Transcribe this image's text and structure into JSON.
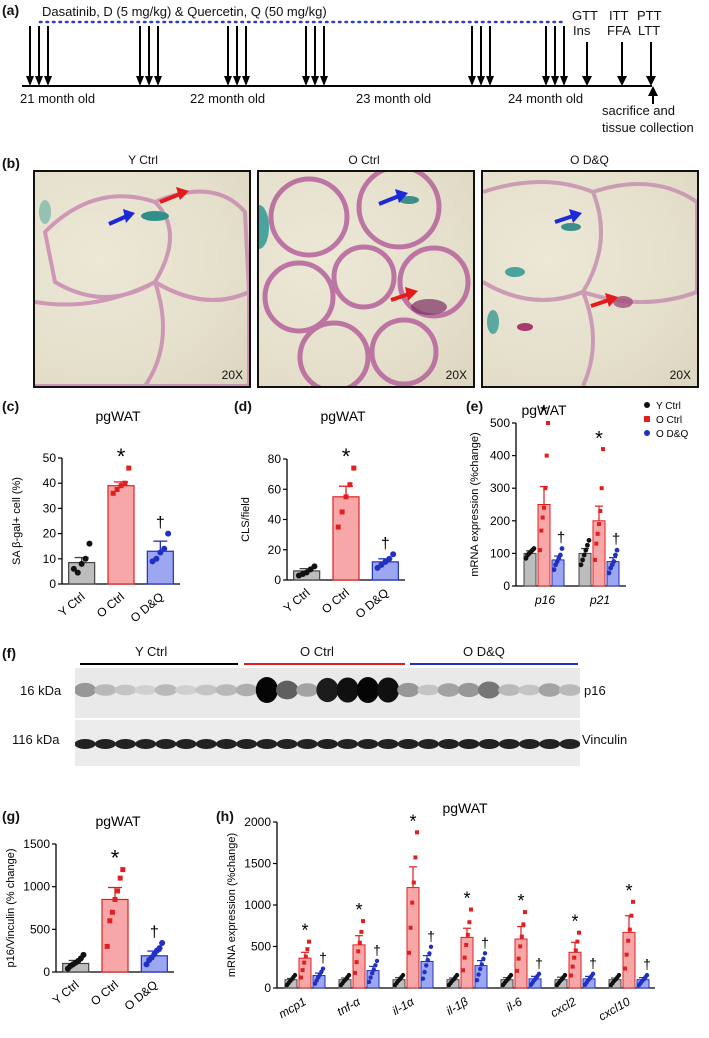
{
  "panel_labels": {
    "a": "(a)",
    "b": "(b)",
    "c": "(c)",
    "d": "(d)",
    "e": "(e)",
    "f": "(f)",
    "g": "(g)",
    "h": "(h)"
  },
  "timeline": {
    "treatment": "Dasatinib, D (5 mg/kg) & Quercetin, Q (50 mg/kg)",
    "ages": [
      "21 month old",
      "22 month old",
      "23 month old",
      "24 month old"
    ],
    "tests": {
      "gtt": "GTT",
      "ins": "Ins",
      "itt": "ITT",
      "ffa": "FFA",
      "ptt": "PTT",
      "ltt": "LTT"
    },
    "sacrifice": "sacrifice and tissue collection",
    "colors": {
      "dots": "#2b3fbf",
      "arrows": "#000000"
    }
  },
  "micrographs": [
    {
      "title": "Y Ctrl",
      "mag": "20X"
    },
    {
      "title": "O Ctrl",
      "mag": "20X"
    },
    {
      "title": "O D&Q",
      "mag": "20X"
    }
  ],
  "common": {
    "tissue": "pgWAT",
    "star": "*",
    "dagger": "†"
  },
  "colors": {
    "y": "#bdbdbd",
    "o": "#f7a7a7",
    "oe": "#e02020",
    "dq": "#9da6f0",
    "dqe": "#2030c0"
  },
  "chart_data": [
    {
      "id": "c",
      "type": "bar",
      "title": "pgWAT",
      "ylabel": "SA β-gal+ cell (%)",
      "ylim": [
        0,
        50
      ],
      "yticks": [
        0,
        10,
        20,
        30,
        40,
        50
      ],
      "categories": [
        "Y Ctrl",
        "O Ctrl",
        "O D&Q"
      ],
      "values": [
        8.5,
        39,
        13
      ],
      "errors": [
        2,
        1.5,
        4
      ],
      "points": [
        [
          6,
          4.5,
          8,
          10,
          16
        ],
        [
          36,
          37.5,
          39,
          40,
          46
        ],
        [
          9,
          10,
          12.5,
          14,
          20
        ]
      ],
      "annotations": [
        {
          "category": "O Ctrl",
          "text": "*"
        },
        {
          "category": "O D&Q",
          "text": "†"
        }
      ]
    },
    {
      "id": "d",
      "type": "bar",
      "title": "pgWAT",
      "ylabel": "CLS/field",
      "ylim": [
        0,
        80
      ],
      "yticks": [
        0,
        20,
        40,
        60,
        80
      ],
      "categories": [
        "Y Ctrl",
        "O Ctrl",
        "O D&Q"
      ],
      "values": [
        6,
        55,
        12
      ],
      "errors": [
        1.5,
        7,
        2
      ],
      "points": [
        [
          3,
          4,
          5,
          7,
          9
        ],
        [
          35,
          45,
          55,
          63,
          74
        ],
        [
          8,
          10,
          12,
          14,
          17
        ]
      ],
      "annotations": [
        {
          "category": "O Ctrl",
          "text": "*"
        },
        {
          "category": "O D&Q",
          "text": "†"
        }
      ]
    },
    {
      "id": "e",
      "type": "bar",
      "title": "pgWAT",
      "ylabel": "mRNA expression (%change)",
      "ylim": [
        0,
        500
      ],
      "yticks": [
        0,
        100,
        200,
        300,
        400,
        500
      ],
      "categories": [
        "p16",
        "p21"
      ],
      "series": [
        {
          "name": "Y Ctrl",
          "values": [
            100,
            100
          ],
          "errors": [
            8,
            15
          ]
        },
        {
          "name": "O Ctrl",
          "values": [
            250,
            200
          ],
          "errors": [
            55,
            45
          ]
        },
        {
          "name": "O D&Q",
          "values": [
            80,
            75
          ],
          "errors": [
            12,
            12
          ]
        }
      ],
      "points": [
        [
          [
            85,
            95,
            100,
            105,
            110,
            115
          ],
          [
            65,
            80,
            95,
            110,
            125,
            140
          ]
        ],
        [
          [
            110,
            170,
            210,
            240,
            300,
            400,
            500
          ],
          [
            80,
            130,
            160,
            190,
            230,
            300,
            420
          ]
        ],
        [
          [
            50,
            65,
            75,
            85,
            95,
            115
          ],
          [
            40,
            55,
            65,
            75,
            95,
            110
          ]
        ]
      ],
      "annotations": [
        {
          "category": "p16",
          "series": "O Ctrl",
          "text": "*"
        },
        {
          "category": "p16",
          "series": "O D&Q",
          "text": "†"
        },
        {
          "category": "p21",
          "series": "O Ctrl",
          "text": "*"
        },
        {
          "category": "p21",
          "series": "O D&Q",
          "text": "†"
        }
      ]
    },
    {
      "id": "g",
      "type": "bar",
      "title": "pgWAT",
      "ylabel": "p16/Vinculin (% change)",
      "ylim": [
        0,
        1500
      ],
      "yticks": [
        0,
        500,
        1000,
        1500
      ],
      "categories": [
        "Y Ctrl",
        "O Ctrl",
        "O D&Q"
      ],
      "values": [
        100,
        850,
        190
      ],
      "errors": [
        35,
        140,
        55
      ],
      "points": [
        [
          40,
          70,
          90,
          110,
          130,
          160,
          200
        ],
        [
          300,
          600,
          700,
          850,
          950,
          1100,
          1200
        ],
        [
          90,
          140,
          170,
          210,
          250,
          280,
          340
        ]
      ],
      "annotations": [
        {
          "category": "O Ctrl",
          "text": "*"
        },
        {
          "category": "O D&Q",
          "text": "†"
        }
      ]
    },
    {
      "id": "h",
      "type": "bar",
      "title": "pgWAT",
      "ylabel": "mRNA expression (%change)",
      "ylim": [
        0,
        2000
      ],
      "yticks": [
        0,
        500,
        1000,
        1500,
        2000
      ],
      "categories": [
        "mcp1",
        "tnf-α",
        "il-1α",
        "il-1β",
        "il-6",
        "cxcl2",
        "cxcl10"
      ],
      "series": [
        {
          "name": "Y Ctrl",
          "values": [
            100,
            100,
            100,
            100,
            100,
            100,
            100
          ],
          "errors": [
            15,
            20,
            25,
            20,
            25,
            30,
            20
          ]
        },
        {
          "name": "O Ctrl",
          "values": [
            360,
            520,
            1210,
            610,
            590,
            430,
            670
          ],
          "errors": [
            70,
            110,
            250,
            110,
            150,
            120,
            200
          ]
        },
        {
          "name": "O D&Q",
          "values": [
            150,
            210,
            320,
            270,
            110,
            110,
            100
          ],
          "errors": [
            30,
            50,
            70,
            60,
            30,
            30,
            25
          ]
        }
      ],
      "annotations": [
        {
          "series": "O Ctrl",
          "text": "*"
        },
        {
          "series": "O D&Q",
          "text": "†"
        }
      ]
    }
  ],
  "western": {
    "groups": [
      "Y Ctrl",
      "O Ctrl",
      "O D&Q"
    ],
    "bands": [
      {
        "kda": "16 kDa",
        "name": "p16"
      },
      {
        "kda": "116 kDa",
        "name": "Vinculin"
      }
    ],
    "p16_intensity": [
      0.35,
      0.2,
      0.15,
      0.1,
      0.2,
      0.1,
      0.15,
      0.2,
      0.25,
      1,
      0.6,
      0.3,
      0.9,
      0.95,
      1,
      0.95,
      0.35,
      0.15,
      0.3,
      0.35,
      0.5,
      0.2,
      0.15,
      0.3,
      0.2
    ]
  }
}
